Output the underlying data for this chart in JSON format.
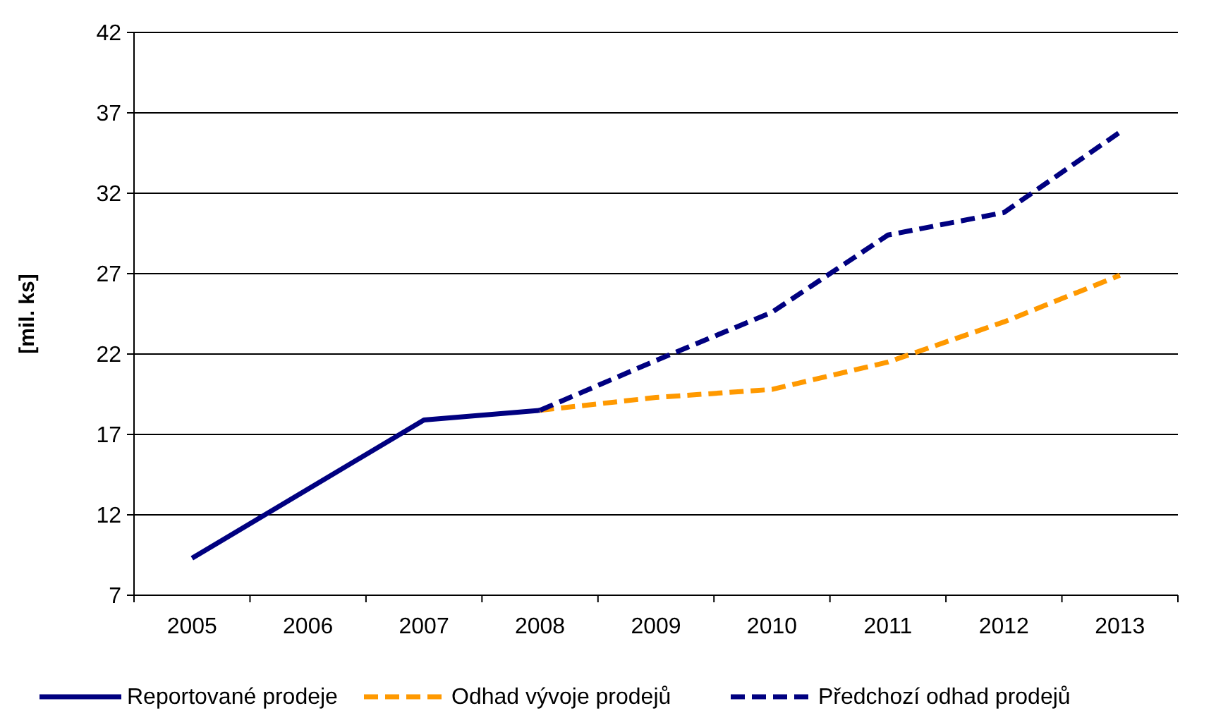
{
  "chart_data": {
    "type": "line",
    "ylabel": "[mil. ks]",
    "categories": [
      "2005",
      "2006",
      "2007",
      "2008",
      "2009",
      "2010",
      "2011",
      "2012",
      "2013"
    ],
    "ylim": [
      7,
      42
    ],
    "yticks": [
      7,
      12,
      17,
      22,
      27,
      32,
      37,
      42
    ],
    "grid": "y",
    "legend": "bottom",
    "series": [
      {
        "name": "Reportované prodeje",
        "color": "#000080",
        "line_style": "solid",
        "values": [
          9.3,
          13.6,
          17.9,
          18.5,
          null,
          null,
          null,
          null,
          null
        ]
      },
      {
        "name": "Odhad vývoje prodejů",
        "color": "#ff9900",
        "line_style": "dashed",
        "values": [
          null,
          null,
          null,
          18.5,
          19.3,
          19.8,
          21.5,
          24.0,
          26.9
        ]
      },
      {
        "name": "Předchozí odhad prodejů",
        "color": "#000080",
        "line_style": "dashed",
        "values": [
          null,
          null,
          null,
          18.5,
          21.6,
          24.6,
          29.4,
          30.8,
          35.8
        ]
      }
    ]
  }
}
